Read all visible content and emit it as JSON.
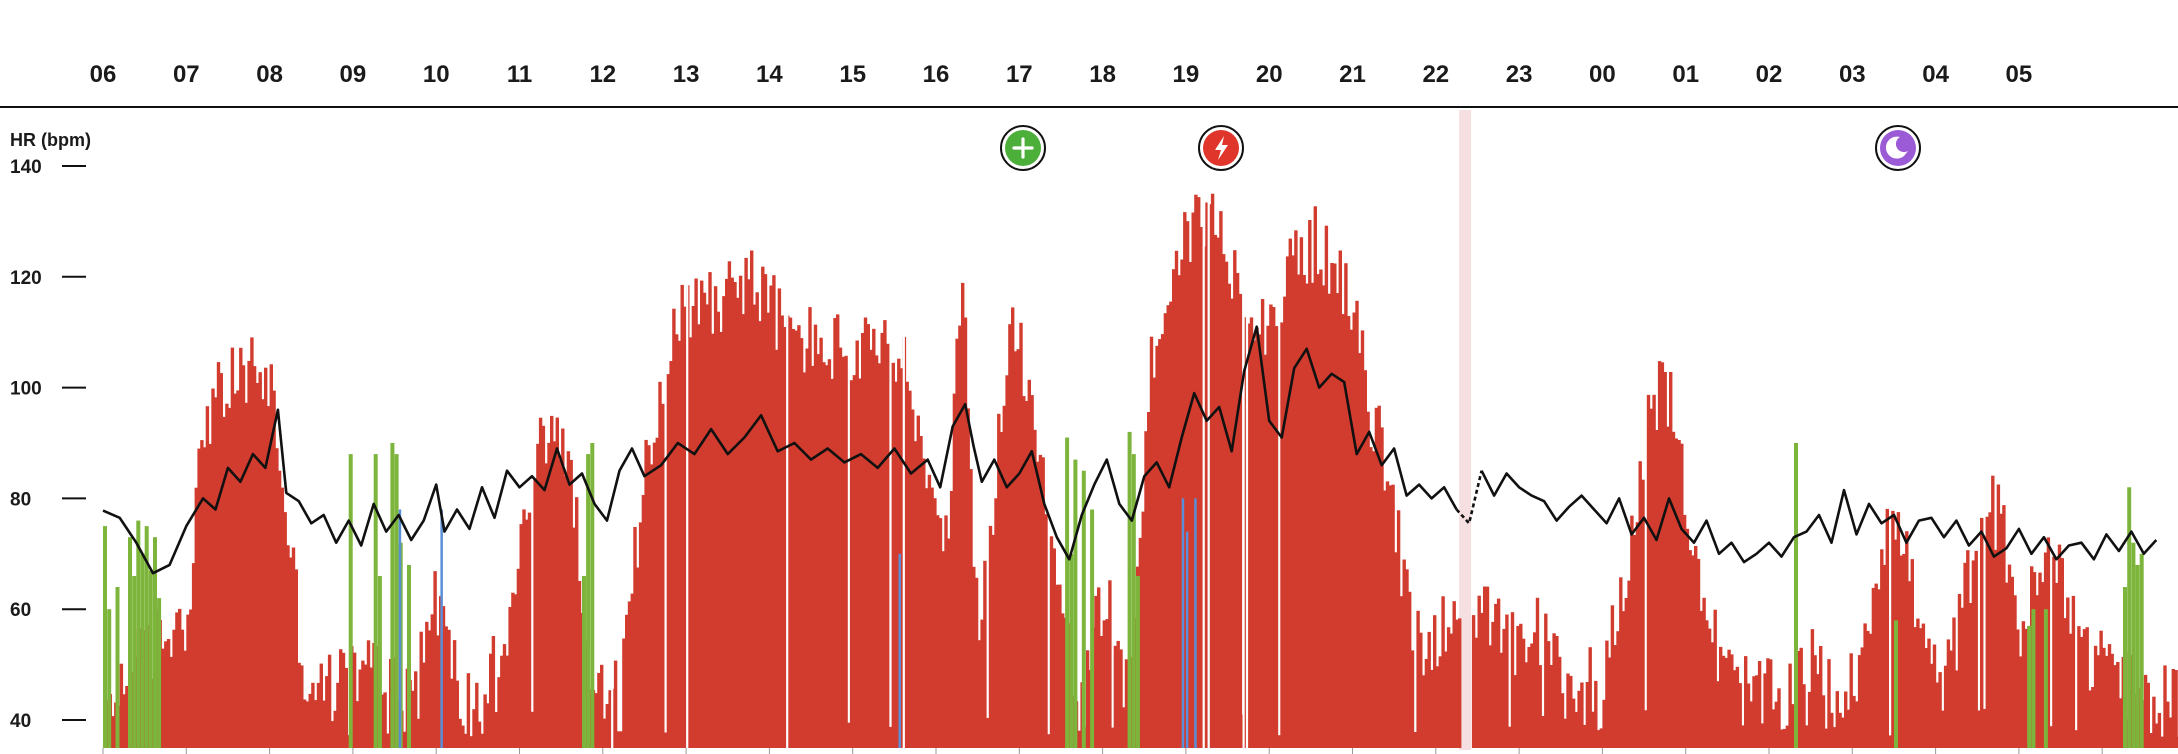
{
  "chart_data": {
    "type": "bar",
    "ylabel": "HR (bpm)",
    "yticks": [
      40,
      60,
      80,
      100,
      120,
      140
    ],
    "ylim": [
      35,
      145
    ],
    "hours": [
      "06",
      "07",
      "08",
      "09",
      "10",
      "11",
      "12",
      "13",
      "14",
      "15",
      "16",
      "17",
      "18",
      "19",
      "20",
      "21",
      "22",
      "23",
      "00",
      "01",
      "02",
      "03",
      "04",
      "05"
    ],
    "colors": {
      "intensity_bar": "#d23c2f",
      "active_bar": "#7db53c",
      "blue_bar": "#5a8fd8",
      "hr_line": "#111111",
      "marker_gap": "#f6dfe0"
    },
    "series": [
      {
        "kind": "line",
        "description_color": "hr_line",
        "points": [
          [
            6.0,
            77.8
          ],
          [
            6.2,
            76.5
          ],
          [
            6.4,
            72.0
          ],
          [
            6.6,
            66.5
          ],
          [
            6.8,
            68.0
          ],
          [
            7.0,
            75.0
          ],
          [
            7.2,
            80.0
          ],
          [
            7.35,
            78.0
          ],
          [
            7.5,
            85.5
          ],
          [
            7.65,
            83.0
          ],
          [
            7.8,
            88.0
          ],
          [
            7.95,
            85.5
          ],
          [
            8.1,
            96.0
          ],
          [
            8.2,
            81.0
          ],
          [
            8.35,
            79.5
          ],
          [
            8.5,
            75.5
          ],
          [
            8.65,
            77.0
          ],
          [
            8.8,
            72.0
          ],
          [
            8.95,
            76.0
          ],
          [
            9.1,
            71.5
          ],
          [
            9.25,
            79.0
          ],
          [
            9.4,
            74.0
          ],
          [
            9.55,
            77.0
          ],
          [
            9.7,
            72.5
          ],
          [
            9.85,
            76.0
          ],
          [
            10.0,
            82.5
          ],
          [
            10.1,
            74.0
          ],
          [
            10.25,
            78.0
          ],
          [
            10.4,
            74.5
          ],
          [
            10.55,
            82.0
          ],
          [
            10.7,
            76.5
          ],
          [
            10.85,
            85.0
          ],
          [
            11.0,
            82.0
          ],
          [
            11.15,
            84.0
          ],
          [
            11.3,
            81.5
          ],
          [
            11.45,
            89.0
          ],
          [
            11.6,
            82.5
          ],
          [
            11.75,
            84.5
          ],
          [
            11.9,
            79.0
          ],
          [
            12.05,
            76.0
          ],
          [
            12.2,
            85.0
          ],
          [
            12.35,
            89.0
          ],
          [
            12.5,
            84.0
          ],
          [
            12.7,
            86.0
          ],
          [
            12.9,
            90.0
          ],
          [
            13.1,
            88.0
          ],
          [
            13.3,
            92.5
          ],
          [
            13.5,
            88.0
          ],
          [
            13.7,
            91.0
          ],
          [
            13.9,
            95.0
          ],
          [
            14.1,
            88.5
          ],
          [
            14.3,
            90.0
          ],
          [
            14.5,
            87.0
          ],
          [
            14.7,
            89.0
          ],
          [
            14.9,
            86.5
          ],
          [
            15.1,
            88.0
          ],
          [
            15.3,
            85.5
          ],
          [
            15.5,
            89.0
          ],
          [
            15.7,
            84.5
          ],
          [
            15.9,
            87.0
          ],
          [
            16.05,
            82.0
          ],
          [
            16.2,
            93.0
          ],
          [
            16.35,
            97.0
          ],
          [
            16.45,
            89.5
          ],
          [
            16.55,
            83.0
          ],
          [
            16.7,
            87.0
          ],
          [
            16.85,
            82.0
          ],
          [
            17.0,
            84.5
          ],
          [
            17.15,
            88.5
          ],
          [
            17.3,
            79.0
          ],
          [
            17.45,
            73.0
          ],
          [
            17.6,
            69.0
          ],
          [
            17.75,
            77.0
          ],
          [
            17.9,
            82.5
          ],
          [
            18.05,
            87.0
          ],
          [
            18.2,
            79.0
          ],
          [
            18.35,
            76.0
          ],
          [
            18.5,
            84.0
          ],
          [
            18.65,
            86.5
          ],
          [
            18.8,
            82.0
          ],
          [
            18.95,
            91.0
          ],
          [
            19.1,
            99.0
          ],
          [
            19.25,
            94.0
          ],
          [
            19.4,
            96.5
          ],
          [
            19.55,
            88.5
          ],
          [
            19.7,
            103.0
          ],
          [
            19.85,
            111.0
          ],
          [
            20.0,
            94.0
          ],
          [
            20.15,
            91.0
          ],
          [
            20.3,
            103.5
          ],
          [
            20.45,
            107.0
          ],
          [
            20.6,
            100.0
          ],
          [
            20.75,
            102.5
          ],
          [
            20.9,
            101.0
          ],
          [
            21.05,
            88.0
          ],
          [
            21.2,
            92.0
          ],
          [
            21.35,
            86.0
          ],
          [
            21.5,
            89.0
          ],
          [
            21.65,
            80.5
          ],
          [
            21.8,
            82.5
          ],
          [
            21.95,
            80.0
          ],
          [
            22.1,
            82.0
          ],
          [
            22.25,
            78.0
          ],
          [
            22.4,
            75.5
          ],
          [
            22.55,
            85.0
          ],
          [
            22.7,
            80.5
          ],
          [
            22.85,
            84.5
          ],
          [
            23.0,
            82.0
          ],
          [
            23.15,
            80.5
          ],
          [
            23.3,
            79.5
          ],
          [
            23.45,
            76.0
          ],
          [
            23.6,
            78.5
          ],
          [
            23.75,
            80.5
          ],
          [
            23.9,
            78.0
          ],
          [
            24.05,
            75.5
          ],
          [
            24.2,
            80.0
          ],
          [
            24.35,
            73.5
          ],
          [
            24.5,
            76.5
          ],
          [
            24.65,
            72.5
          ],
          [
            24.8,
            80.0
          ],
          [
            24.95,
            74.5
          ],
          [
            25.1,
            72.0
          ],
          [
            25.25,
            76.0
          ],
          [
            25.4,
            70.0
          ],
          [
            25.55,
            72.0
          ],
          [
            25.7,
            68.5
          ],
          [
            25.85,
            70.0
          ],
          [
            26.0,
            72.0
          ],
          [
            26.15,
            69.5
          ],
          [
            26.3,
            73.0
          ],
          [
            26.45,
            74.0
          ],
          [
            26.6,
            77.0
          ],
          [
            26.75,
            72.0
          ],
          [
            26.9,
            81.5
          ],
          [
            27.05,
            73.5
          ],
          [
            27.2,
            79.0
          ],
          [
            27.35,
            75.5
          ],
          [
            27.5,
            77.0
          ],
          [
            27.65,
            72.0
          ],
          [
            27.8,
            76.0
          ],
          [
            27.95,
            76.5
          ],
          [
            28.1,
            73.0
          ],
          [
            28.25,
            76.0
          ],
          [
            28.4,
            71.5
          ],
          [
            28.55,
            74.0
          ],
          [
            28.7,
            69.5
          ],
          [
            28.85,
            71.0
          ],
          [
            29.0,
            74.5
          ],
          [
            29.15,
            70.0
          ],
          [
            29.3,
            73.0
          ],
          [
            29.45,
            69.0
          ],
          [
            29.6,
            71.5
          ],
          [
            29.75,
            72.0
          ],
          [
            29.9,
            69.0
          ],
          [
            30.05,
            73.5
          ],
          [
            30.2,
            70.5
          ],
          [
            30.35,
            74.0
          ],
          [
            30.5,
            70.0
          ],
          [
            30.65,
            72.5
          ]
        ]
      }
    ]
  }
}
